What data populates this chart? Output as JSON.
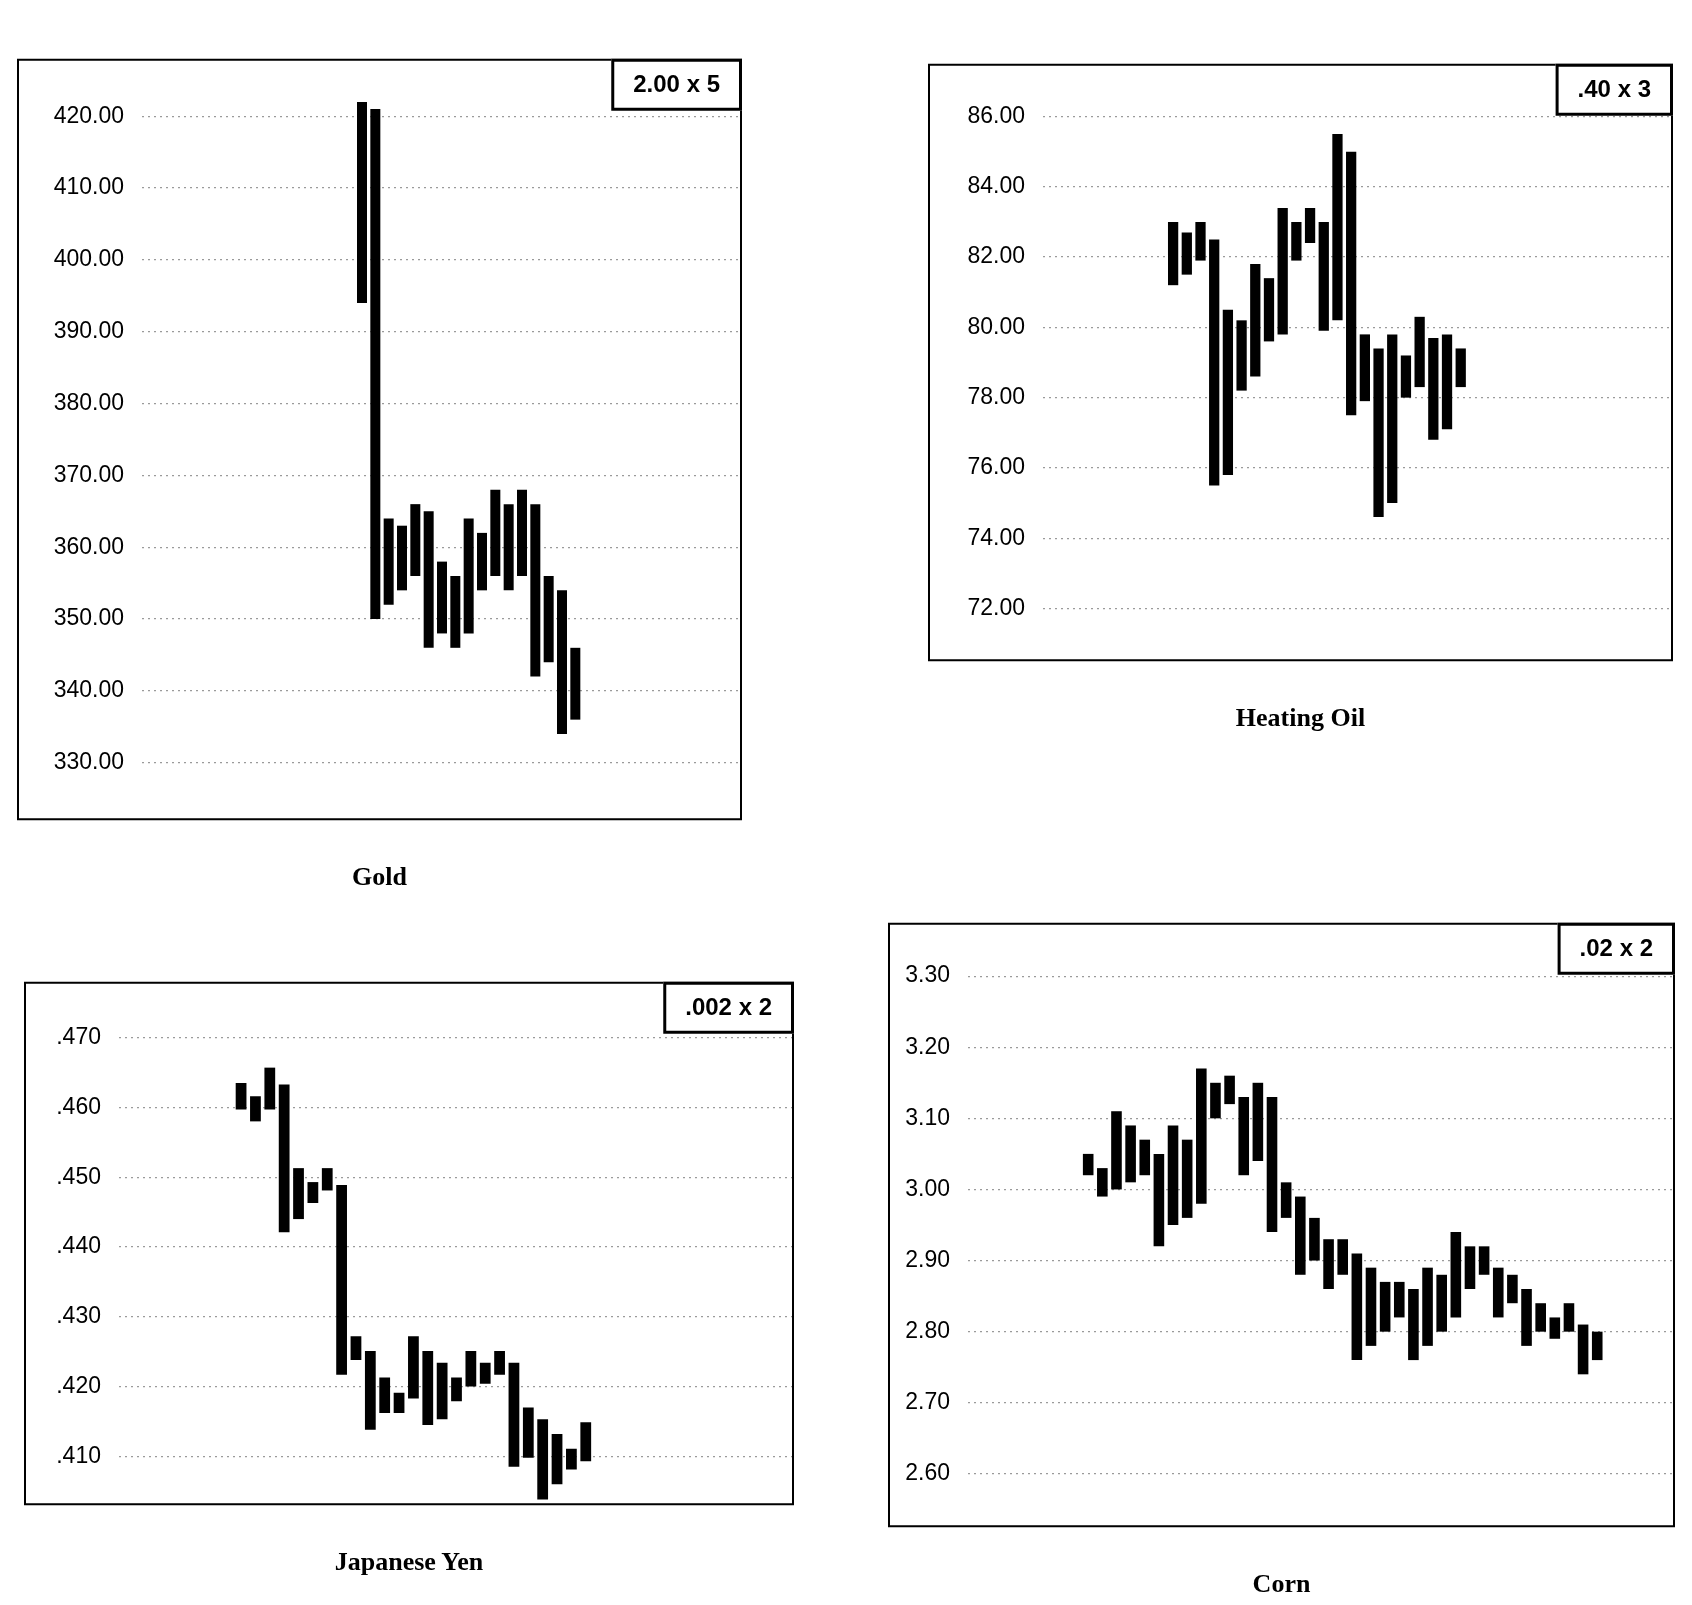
{
  "chart_data": [
    {
      "type": "bar",
      "title": "Gold",
      "annotations": [
        "2.00 x 5"
      ],
      "color": "#000000",
      "grid": "y",
      "categories": [
        null,
        null,
        null,
        null,
        null,
        null,
        null,
        null,
        null,
        null,
        null,
        null,
        null,
        null,
        null,
        null,
        null,
        null,
        null,
        null,
        null,
        null,
        null,
        null,
        null,
        null,
        null,
        null,
        null,
        null,
        null,
        null,
        null,
        null,
        null,
        null,
        null,
        null,
        null,
        null,
        null,
        null,
        null,
        null,
        null
      ],
      "base": [
        null,
        null,
        null,
        null,
        null,
        null,
        null,
        null,
        null,
        null,
        null,
        null,
        null,
        null,
        null,
        null,
        394,
        350,
        352,
        354,
        356,
        346,
        348,
        346,
        348,
        354,
        356,
        354,
        356,
        342,
        344,
        334,
        336,
        null,
        null,
        null,
        null,
        null,
        null,
        null,
        null,
        null,
        null,
        null,
        null
      ],
      "values": [
        null,
        null,
        null,
        null,
        null,
        null,
        null,
        null,
        null,
        null,
        null,
        null,
        null,
        null,
        null,
        null,
        28,
        71,
        12,
        9,
        10,
        19,
        10,
        10,
        16,
        8,
        12,
        12,
        12,
        24,
        12,
        20,
        10,
        null,
        null,
        null,
        null,
        null,
        null,
        null,
        null,
        null,
        null,
        null,
        null
      ],
      "ylim": [
        322,
        428
      ],
      "yticks": [
        {
          "value": 330,
          "label": "330.00"
        },
        {
          "value": 340,
          "label": "340.00"
        },
        {
          "value": 350,
          "label": "350.00"
        },
        {
          "value": 360,
          "label": "360.00"
        },
        {
          "value": 370,
          "label": "370.00"
        },
        {
          "value": 380,
          "label": "380.00"
        },
        {
          "value": 390,
          "label": "390.00"
        },
        {
          "value": 400,
          "label": "400.00"
        },
        {
          "value": 410,
          "label": "410.00"
        },
        {
          "value": 420,
          "label": "420.00"
        }
      ]
    },
    {
      "type": "bar",
      "title": "Heating Oil",
      "annotations": [
        ".40 x 3"
      ],
      "color": "#000000",
      "grid": "y",
      "categories": [
        null,
        null,
        null,
        null,
        null,
        null,
        null,
        null,
        null,
        null,
        null,
        null,
        null,
        null,
        null,
        null,
        null,
        null,
        null,
        null,
        null,
        null,
        null,
        null,
        null,
        null,
        null,
        null,
        null,
        null,
        null,
        null,
        null,
        null,
        null,
        null,
        null,
        null,
        null,
        null,
        null,
        null,
        null,
        null,
        null,
        null
      ],
      "base": [
        null,
        null,
        null,
        null,
        null,
        null,
        null,
        null,
        null,
        81.2,
        81.5,
        81.9,
        75.5,
        75.8,
        78.2,
        78.6,
        79.6,
        79.8,
        81.9,
        82.4,
        79.9,
        80.2,
        77.5,
        77.9,
        74.6,
        75.0,
        78.0,
        78.3,
        76.8,
        77.1,
        78.3,
        null,
        null,
        null,
        null,
        null,
        null,
        null,
        null,
        null,
        null,
        null,
        null,
        null,
        null,
        null
      ],
      "values": [
        null,
        null,
        null,
        null,
        null,
        null,
        null,
        null,
        null,
        1.8,
        1.2,
        1.1,
        7.0,
        4.7,
        2.0,
        3.2,
        1.8,
        3.6,
        1.1,
        1.0,
        3.1,
        5.3,
        7.5,
        1.9,
        4.8,
        4.8,
        1.2,
        2.0,
        2.9,
        2.7,
        1.1,
        null,
        null,
        null,
        null,
        null,
        null,
        null,
        null,
        null,
        null,
        null,
        null,
        null,
        null,
        null
      ],
      "ylim": [
        70.5,
        87.5
      ],
      "yticks": [
        {
          "value": 72,
          "label": "72.00"
        },
        {
          "value": 74,
          "label": "74.00"
        },
        {
          "value": 76,
          "label": "76.00"
        },
        {
          "value": 78,
          "label": "78.00"
        },
        {
          "value": 80,
          "label": "80.00"
        },
        {
          "value": 82,
          "label": "82.00"
        },
        {
          "value": 84,
          "label": "84.00"
        },
        {
          "value": 86,
          "label": "86.00"
        }
      ]
    },
    {
      "type": "bar",
      "title": "Japanese Yen",
      "annotations": [
        ".002 x 2"
      ],
      "color": "#000000",
      "grid": "y",
      "categories": [
        null,
        null,
        null,
        null,
        null,
        null,
        null,
        null,
        null,
        null,
        null,
        null,
        null,
        null,
        null,
        null,
        null,
        null,
        null,
        null,
        null,
        null,
        null,
        null,
        null,
        null,
        null,
        null,
        null,
        null,
        null,
        null,
        null,
        null,
        null,
        null,
        null,
        null,
        null,
        null,
        null,
        null,
        null,
        null,
        null,
        null,
        null
      ],
      "base": [
        null,
        null,
        null,
        null,
        null,
        null,
        null,
        null,
        0.4597,
        0.458,
        0.4597,
        0.4421,
        0.444,
        0.4463,
        0.4481,
        0.4217,
        0.4238,
        0.4138,
        0.4162,
        0.4162,
        0.4183,
        0.4145,
        0.4153,
        0.4179,
        0.42,
        0.4204,
        0.4217,
        0.4085,
        0.4098,
        0.4038,
        0.406,
        0.4081,
        0.4093,
        null,
        null,
        null,
        null,
        null,
        null,
        null,
        null,
        null,
        null,
        null,
        null,
        null,
        null
      ],
      "values": [
        null,
        null,
        null,
        null,
        null,
        null,
        null,
        null,
        0.0038,
        0.0036,
        0.006,
        0.0212,
        0.0073,
        0.003,
        0.0032,
        0.0272,
        0.0034,
        0.0113,
        0.0051,
        0.0029,
        0.0089,
        0.0106,
        0.0081,
        0.0034,
        0.0051,
        0.003,
        0.0034,
        0.0149,
        0.0072,
        0.0115,
        0.0072,
        0.003,
        0.0056,
        null,
        null,
        null,
        null,
        null,
        null,
        null,
        null,
        null,
        null,
        null,
        null,
        null,
        null
      ],
      "ylim": [
        0.403,
        0.478
      ],
      "yticks": [
        {
          "value": 0.41,
          "label": ".410"
        },
        {
          "value": 0.42,
          "label": ".420"
        },
        {
          "value": 0.43,
          "label": ".430"
        },
        {
          "value": 0.44,
          "label": ".440"
        },
        {
          "value": 0.45,
          "label": ".450"
        },
        {
          "value": 0.46,
          "label": ".460"
        },
        {
          "value": 0.47,
          "label": ".470"
        }
      ]
    },
    {
      "type": "bar",
      "title": "Corn",
      "annotations": [
        ".02 x 2"
      ],
      "color": "#000000",
      "grid": "y",
      "categories": [
        null,
        null,
        null,
        null,
        null,
        null,
        null,
        null,
        null,
        null,
        null,
        null,
        null,
        null,
        null,
        null,
        null,
        null,
        null,
        null,
        null,
        null,
        null,
        null,
        null,
        null,
        null,
        null,
        null,
        null,
        null,
        null,
        null,
        null,
        null,
        null,
        null,
        null,
        null,
        null,
        null,
        null,
        null,
        null,
        null,
        null,
        null,
        null,
        null,
        null
      ],
      "base": [
        null,
        null,
        null,
        null,
        null,
        null,
        null,
        null,
        3.02,
        2.99,
        3.0,
        3.01,
        3.02,
        2.92,
        2.95,
        2.96,
        2.98,
        3.1,
        3.12,
        3.02,
        3.04,
        2.94,
        2.96,
        2.88,
        2.9,
        2.86,
        2.88,
        2.76,
        2.78,
        2.8,
        2.82,
        2.76,
        2.78,
        2.8,
        2.82,
        2.86,
        2.88,
        2.82,
        2.84,
        2.78,
        2.8,
        2.79,
        2.8,
        2.74,
        2.76,
        null,
        null,
        null,
        null,
        null
      ],
      "values": [
        null,
        null,
        null,
        null,
        null,
        null,
        null,
        null,
        0.03,
        0.04,
        0.11,
        0.08,
        0.05,
        0.13,
        0.14,
        0.11,
        0.19,
        0.05,
        0.04,
        0.11,
        0.11,
        0.19,
        0.05,
        0.11,
        0.06,
        0.07,
        0.05,
        0.15,
        0.11,
        0.07,
        0.05,
        0.1,
        0.11,
        0.08,
        0.12,
        0.06,
        0.04,
        0.07,
        0.04,
        0.08,
        0.04,
        0.03,
        0.04,
        0.07,
        0.04,
        null,
        null,
        null,
        null,
        null
      ],
      "ylim": [
        2.525,
        3.375
      ],
      "yticks": [
        {
          "value": 2.6,
          "label": "2.60"
        },
        {
          "value": 2.7,
          "label": "2.70"
        },
        {
          "value": 2.8,
          "label": "2.80"
        },
        {
          "value": 2.9,
          "label": "2.90"
        },
        {
          "value": 3.0,
          "label": "3.00"
        },
        {
          "value": 3.1,
          "label": "3.10"
        },
        {
          "value": 3.2,
          "label": "3.20"
        },
        {
          "value": 3.3,
          "label": "3.30"
        }
      ]
    }
  ]
}
